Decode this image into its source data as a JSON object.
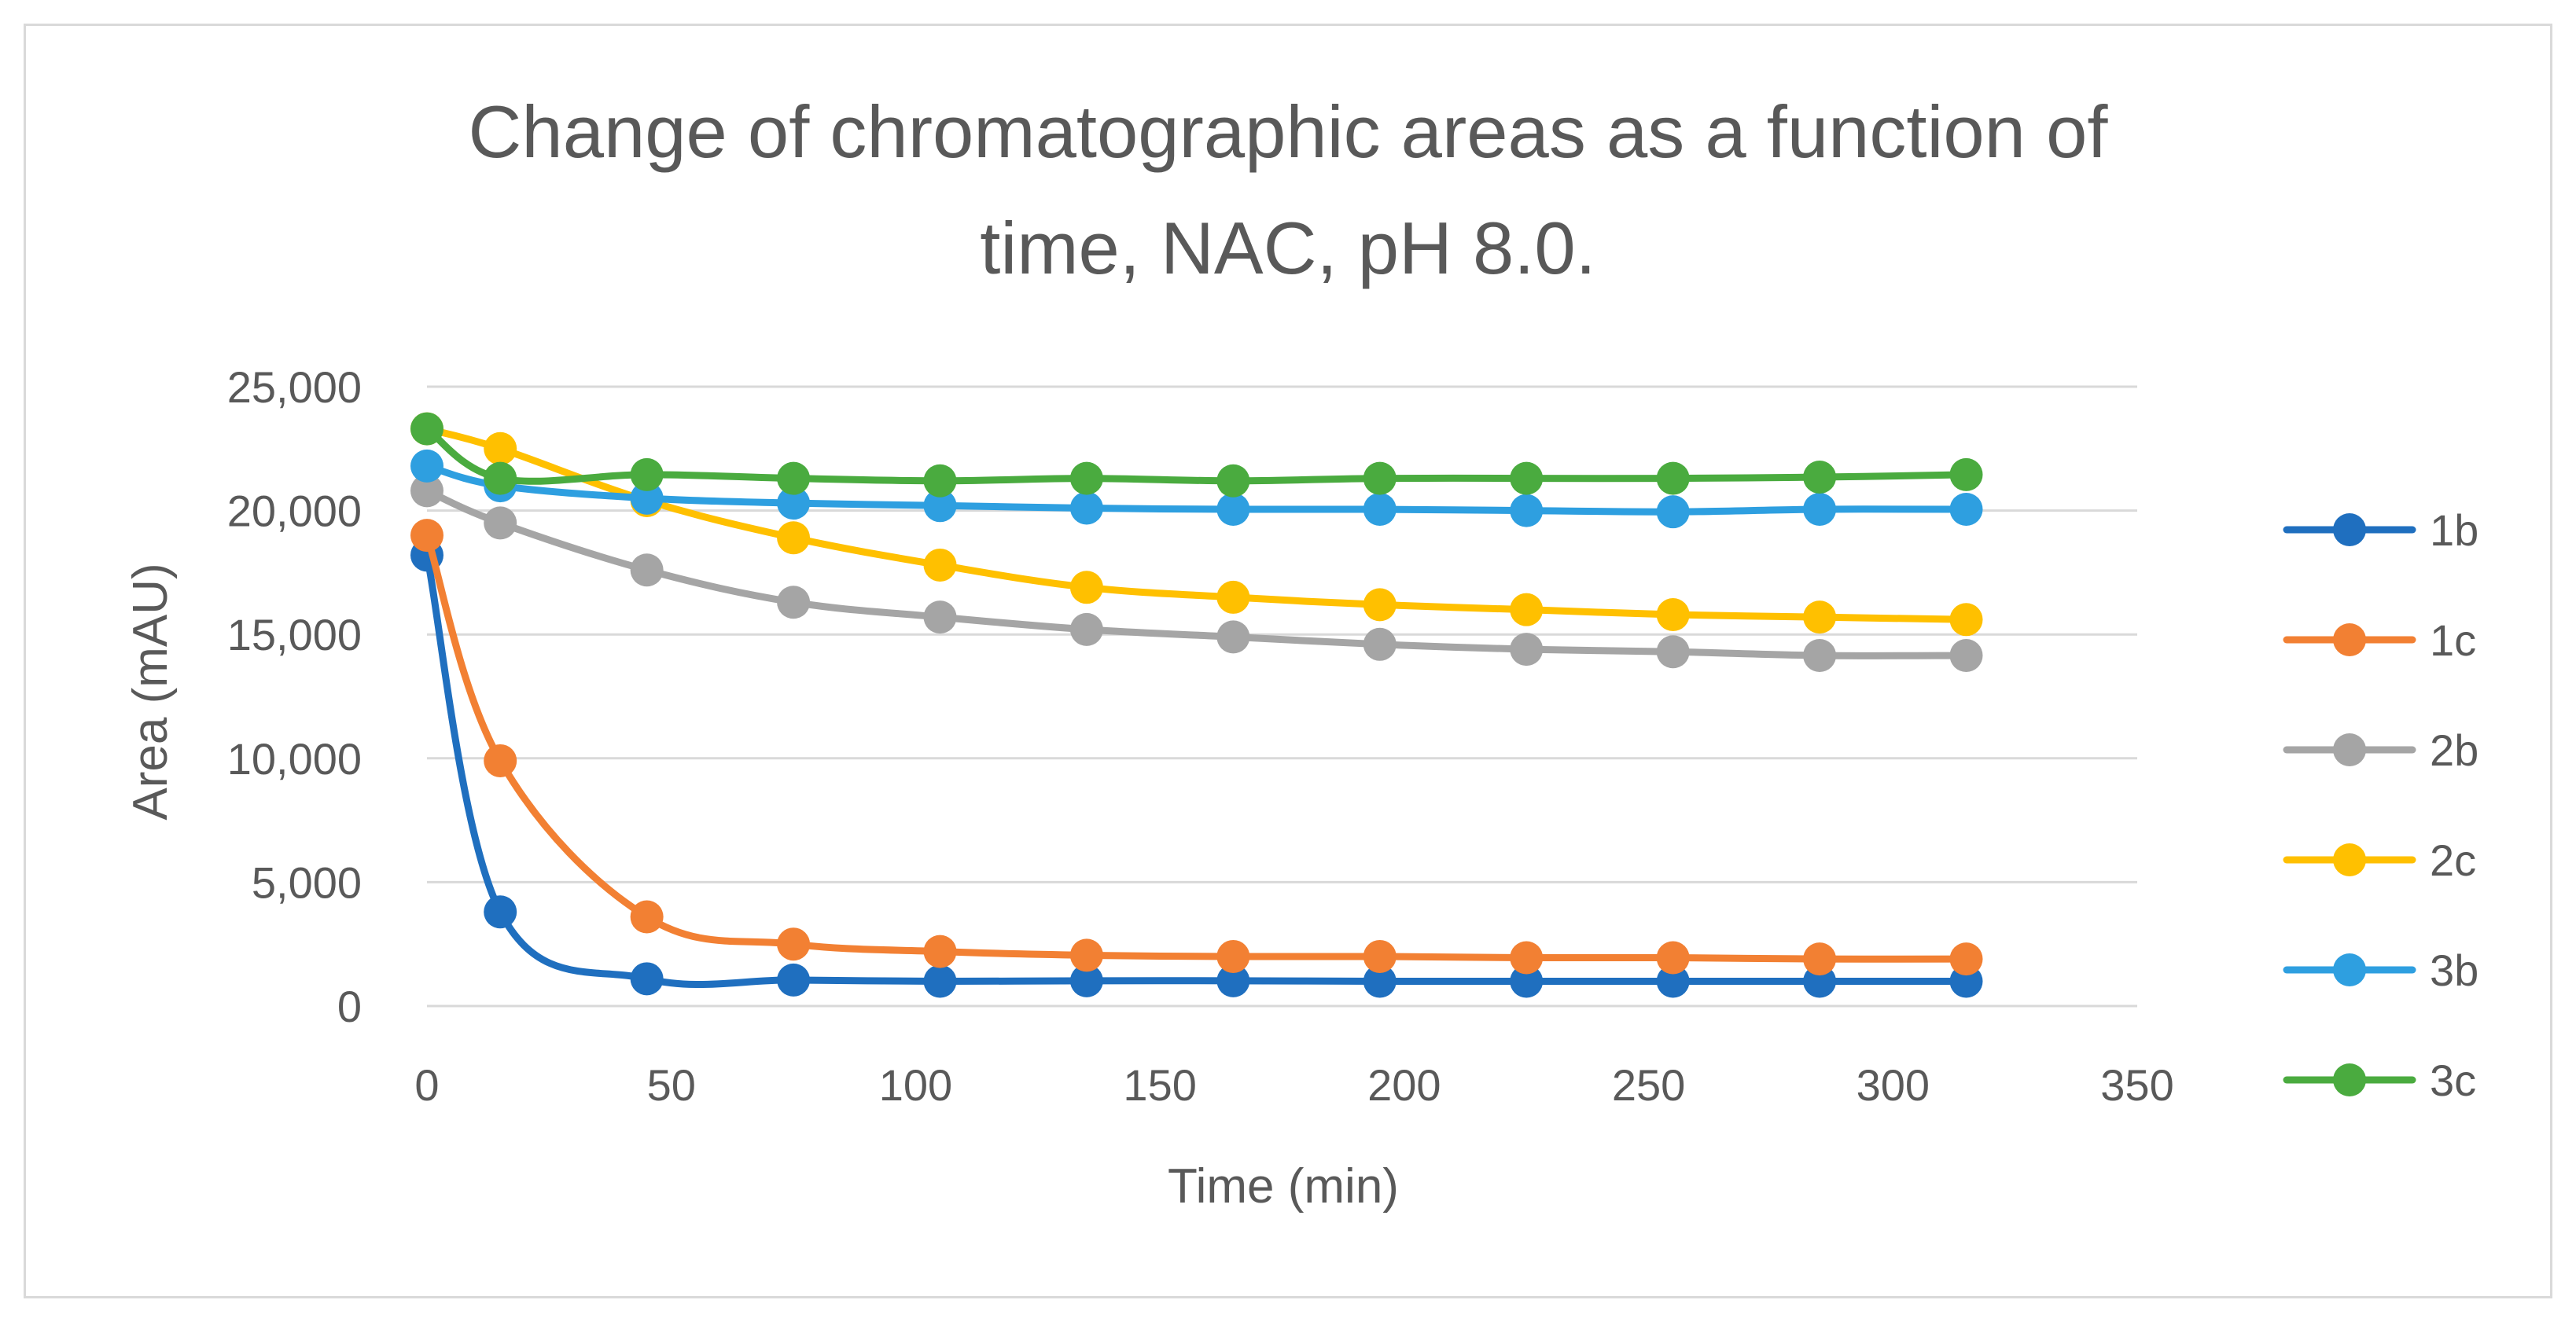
{
  "chart_data": {
    "type": "scatter",
    "title_lines": [
      "Change of chromatographic areas as a function of",
      "time, NAC, pH 8.0."
    ],
    "xlabel": "Time (min)",
    "ylabel": "Area (mAU)",
    "xlim": [
      0,
      350
    ],
    "ylim": [
      0,
      25000
    ],
    "xticks": [
      0,
      50,
      100,
      150,
      200,
      250,
      300,
      350
    ],
    "yticks": [
      0,
      5000,
      10000,
      15000,
      20000,
      25000
    ],
    "ytick_labels": [
      "0",
      "5,000",
      "10,000",
      "15,000",
      "20,000",
      "25,000"
    ],
    "xtick_labels": [
      "0",
      "50",
      "100",
      "150",
      "200",
      "250",
      "300",
      "350"
    ],
    "grid": true,
    "legend_position": "right",
    "x": [
      0,
      15,
      45,
      75,
      105,
      135,
      165,
      195,
      225,
      255,
      285,
      315
    ],
    "series": [
      {
        "name": "1b",
        "color": "#1f6fbf",
        "values": [
          18200,
          3800,
          1100,
          1050,
          1000,
          1020,
          1020,
          1000,
          1000,
          1000,
          1000,
          1000
        ]
      },
      {
        "name": "1c",
        "color": "#f28033",
        "values": [
          19000,
          9900,
          3600,
          2500,
          2200,
          2050,
          2000,
          2000,
          1950,
          1950,
          1900,
          1900
        ]
      },
      {
        "name": "2b",
        "color": "#a5a5a5",
        "values": [
          20800,
          19500,
          17600,
          16300,
          15700,
          15200,
          14900,
          14600,
          14400,
          14300,
          14150,
          14150
        ]
      },
      {
        "name": "2c",
        "color": "#ffc000",
        "values": [
          23300,
          22500,
          20400,
          18900,
          17800,
          16900,
          16500,
          16200,
          16000,
          15800,
          15700,
          15600
        ]
      },
      {
        "name": "3b",
        "color": "#2e9fe0",
        "values": [
          21800,
          21000,
          20500,
          20300,
          20200,
          20100,
          20050,
          20050,
          20000,
          19950,
          20050,
          20050
        ]
      },
      {
        "name": "3c",
        "color": "#4aab3f",
        "values": [
          23300,
          21300,
          21450,
          21300,
          21200,
          21300,
          21200,
          21300,
          21300,
          21300,
          21350,
          21450
        ]
      }
    ]
  }
}
